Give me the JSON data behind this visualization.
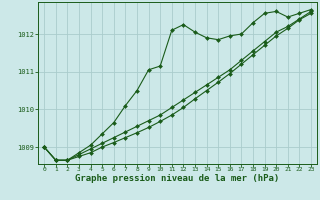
{
  "bg_color": "#cce8e8",
  "grid_color": "#aacccc",
  "line_color": "#1a5c1a",
  "marker_color": "#1a5c1a",
  "xlabel": "Graphe pression niveau de la mer (hPa)",
  "xlabel_fontsize": 6.5,
  "yticks": [
    1009,
    1010,
    1011,
    1012
  ],
  "xticks": [
    0,
    1,
    2,
    3,
    4,
    5,
    6,
    7,
    8,
    9,
    10,
    11,
    12,
    13,
    14,
    15,
    16,
    17,
    18,
    19,
    20,
    21,
    22,
    23
  ],
  "xlim": [
    -0.5,
    23.5
  ],
  "ylim": [
    1008.55,
    1012.85
  ],
  "series1_x": [
    0,
    1,
    2,
    3,
    4,
    5,
    6,
    7,
    8,
    9,
    10,
    11,
    12,
    13,
    14,
    15,
    16,
    17,
    18,
    19,
    20,
    21,
    22,
    23
  ],
  "series1_y": [
    1009.0,
    1008.65,
    1008.65,
    1008.85,
    1009.05,
    1009.35,
    1009.65,
    1010.1,
    1010.5,
    1011.05,
    1011.15,
    1012.1,
    1012.25,
    1012.05,
    1011.9,
    1011.85,
    1011.95,
    1012.0,
    1012.3,
    1012.55,
    1012.6,
    1012.45,
    1012.55,
    1012.65
  ],
  "series2_x": [
    0,
    1,
    2,
    3,
    4,
    5,
    6,
    7,
    8,
    9,
    10,
    11,
    12,
    13,
    14,
    15,
    16,
    17,
    18,
    19,
    20,
    21,
    22,
    23
  ],
  "series2_y": [
    1009.0,
    1008.65,
    1008.65,
    1008.8,
    1008.95,
    1009.1,
    1009.25,
    1009.4,
    1009.55,
    1009.7,
    1009.85,
    1010.05,
    1010.25,
    1010.45,
    1010.65,
    1010.85,
    1011.05,
    1011.3,
    1011.55,
    1011.8,
    1012.05,
    1012.2,
    1012.4,
    1012.6
  ],
  "series3_x": [
    0,
    1,
    2,
    3,
    4,
    5,
    6,
    7,
    8,
    9,
    10,
    11,
    12,
    13,
    14,
    15,
    16,
    17,
    18,
    19,
    20,
    21,
    22,
    23
  ],
  "series3_y": [
    1009.0,
    1008.65,
    1008.65,
    1008.75,
    1008.85,
    1009.0,
    1009.12,
    1009.25,
    1009.38,
    1009.52,
    1009.68,
    1009.85,
    1010.05,
    1010.28,
    1010.5,
    1010.72,
    1010.95,
    1011.2,
    1011.45,
    1011.7,
    1011.95,
    1012.15,
    1012.38,
    1012.55
  ]
}
